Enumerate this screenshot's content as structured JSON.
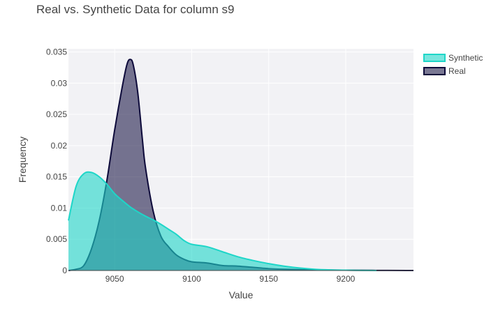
{
  "chart_data": {
    "type": "area",
    "title": "Real vs. Synthetic Data for column s9",
    "xlabel": "Value",
    "ylabel": "Frequency",
    "xlim": [
      9020,
      9244
    ],
    "ylim": [
      0,
      0.0355
    ],
    "x_ticks": [
      9050,
      9100,
      9150,
      9200
    ],
    "x_tick_labels": [
      "9050",
      "9100",
      "9150",
      "9200"
    ],
    "y_ticks": [
      0,
      0.005,
      0.01,
      0.015,
      0.02,
      0.025,
      0.03,
      0.035
    ],
    "y_tick_labels": [
      "0",
      "0.005",
      "0.01",
      "0.015",
      "0.02",
      "0.025",
      "0.03",
      "0.035"
    ],
    "grid": true,
    "legend_position": "top-right",
    "series": [
      {
        "name": "Synthetic",
        "color": "#1ed6c8",
        "fill_color": "rgba(30,214,200,0.6)",
        "x": [
          9020,
          9025,
          9030,
          9035,
          9040,
          9045,
          9050,
          9055,
          9060,
          9065,
          9070,
          9075,
          9080,
          9085,
          9090,
          9095,
          9100,
          9110,
          9120,
          9130,
          9140,
          9150,
          9160,
          9170,
          9180,
          9190,
          9200,
          9210,
          9220
        ],
        "values": [
          0.008,
          0.0135,
          0.0155,
          0.0157,
          0.015,
          0.0138,
          0.0123,
          0.0112,
          0.0102,
          0.0094,
          0.0087,
          0.0081,
          0.0074,
          0.0066,
          0.0058,
          0.0048,
          0.0042,
          0.0038,
          0.003,
          0.0022,
          0.0016,
          0.0011,
          0.0007,
          0.0004,
          0.0002,
          0.0001,
          5e-05,
          2e-05,
          0.0
        ]
      },
      {
        "name": "Real",
        "color": "#0d0a3a",
        "fill_color": "rgba(13,10,58,0.55)",
        "x": [
          9020,
          9025,
          9030,
          9035,
          9040,
          9045,
          9050,
          9055,
          9058,
          9060,
          9062,
          9065,
          9068,
          9070,
          9075,
          9080,
          9085,
          9090,
          9095,
          9100,
          9110,
          9120,
          9130,
          9140,
          9150,
          9160,
          9180,
          9200,
          9220,
          9240,
          9244
        ],
        "values": [
          0.0,
          0.0002,
          0.0008,
          0.0035,
          0.008,
          0.0145,
          0.0225,
          0.0295,
          0.033,
          0.0338,
          0.033,
          0.0285,
          0.021,
          0.0165,
          0.0095,
          0.0055,
          0.0038,
          0.0025,
          0.0018,
          0.0014,
          0.0012,
          0.0008,
          0.0007,
          0.0005,
          0.0003,
          0.0002,
          0.0001,
          5e-05,
          2e-05,
          0.0,
          0.0
        ]
      }
    ]
  }
}
